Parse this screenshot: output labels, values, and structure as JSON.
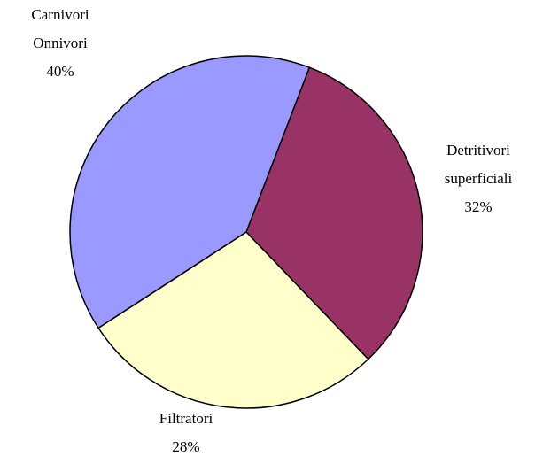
{
  "chart_data": {
    "type": "pie",
    "categories": [
      "Detritivori superficiali",
      "Filtratori",
      "Carnivori Onnivori"
    ],
    "values": [
      32,
      28,
      40
    ],
    "value_labels": [
      "32%",
      "28%",
      "40%"
    ],
    "colors": [
      "#993366",
      "#ffffcc",
      "#9999ff"
    ]
  }
}
